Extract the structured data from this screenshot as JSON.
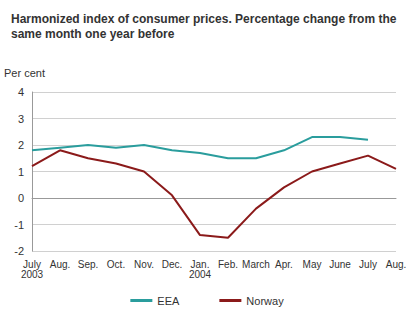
{
  "chart_data": {
    "type": "line",
    "title": "Harmonized index of consumer prices. Percentage change from the same month one year before",
    "y_label": "Per cent",
    "categories": [
      "July 2003",
      "Aug.",
      "Sep.",
      "Oct.",
      "Nov.",
      "Dec.",
      "Jan. 2004",
      "Feb.",
      "March",
      "Apr.",
      "May",
      "June",
      "July",
      "Aug."
    ],
    "series": [
      {
        "name": "EEA",
        "color": "#2a9d9d",
        "values": [
          1.8,
          1.9,
          2.0,
          1.9,
          2.0,
          1.8,
          1.7,
          1.5,
          1.5,
          1.8,
          2.3,
          2.3,
          2.2,
          null
        ]
      },
      {
        "name": "Norway",
        "color": "#8b1a1a",
        "values": [
          1.2,
          1.8,
          1.5,
          1.3,
          1.0,
          0.1,
          -1.4,
          -1.5,
          -0.4,
          0.4,
          1.0,
          1.3,
          1.6,
          1.1
        ]
      }
    ],
    "ylim": [
      -2,
      4
    ],
    "yticks": [
      -2,
      -1,
      0,
      1,
      2,
      3,
      4
    ],
    "grid": true,
    "legend": "bottom"
  }
}
